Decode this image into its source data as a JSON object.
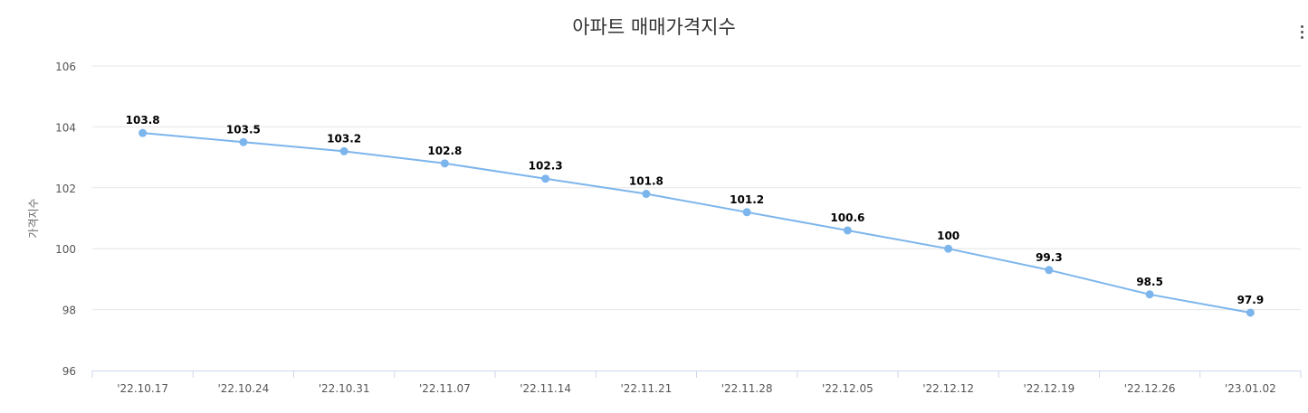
{
  "chart_data": {
    "type": "line",
    "title": "아파트 매매가격지수",
    "ylabel": "가격지수",
    "xlabel": "",
    "categories": [
      "'22.10.17",
      "'22.10.24",
      "'22.10.31",
      "'22.11.07",
      "'22.11.14",
      "'22.11.21",
      "'22.11.28",
      "'22.12.05",
      "'22.12.12",
      "'22.12.19",
      "'22.12.26",
      "'23.01.02"
    ],
    "values": [
      103.8,
      103.5,
      103.2,
      102.8,
      102.3,
      101.8,
      101.2,
      100.6,
      100,
      99.3,
      98.5,
      97.9
    ],
    "value_labels": [
      "103.8",
      "103.5",
      "103.2",
      "102.8",
      "102.3",
      "101.8",
      "101.2",
      "100.6",
      "100",
      "99.3",
      "98.5",
      "97.9"
    ],
    "ylim": [
      96,
      106
    ],
    "yticks": [
      96,
      98,
      100,
      102,
      104,
      106
    ],
    "grid": true,
    "legend": "none",
    "colors": {
      "line": "#7cb5ec",
      "grid": "#e6e6e6",
      "axis": "#ccd6eb",
      "tick_text": "#555555",
      "label_text": "#000000"
    }
  }
}
